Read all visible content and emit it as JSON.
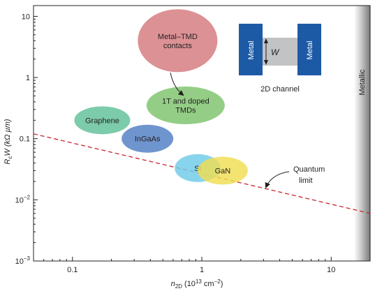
{
  "chart_data": {
    "type": "scatter",
    "xlabel": "n",
    "xlabel_sub": "2D",
    "xlabel_units": " (10",
    "xlabel_units_sup": "13",
    "xlabel_units_tail": " cm",
    "xlabel_units_sup2": "−2",
    "xlabel_units_close": ")",
    "ylabel": "R",
    "ylabel_sub": "c",
    "ylabel_rest": "W (kΩ µm)",
    "x_scale": "log",
    "y_scale": "log",
    "xlim": [
      0.05,
      20
    ],
    "ylim": [
      0.001,
      15
    ],
    "x_ticks": [
      {
        "value": 0.1,
        "label": "0.1"
      },
      {
        "value": 1,
        "label": "1"
      },
      {
        "value": 10,
        "label": "10"
      }
    ],
    "y_ticks": [
      {
        "value": 0.001,
        "base": "10",
        "exp": "−3"
      },
      {
        "value": 0.01,
        "base": "10",
        "exp": "−2"
      },
      {
        "value": 0.1,
        "label": "0.1"
      },
      {
        "value": 1,
        "label": "1"
      },
      {
        "value": 10,
        "label": "10"
      }
    ],
    "regions": [
      {
        "label": "Metal-TMD contacts",
        "lines": [
          "Metal–TMD",
          "contacts"
        ],
        "x_center": 0.65,
        "y_center": 4.0,
        "color": "#d4797d"
      },
      {
        "label": "1T and doped TMDs",
        "lines": [
          "1T and doped",
          "TMDs"
        ],
        "x_center": 0.75,
        "y_center": 0.35,
        "color": "#7dc36b"
      },
      {
        "label": "Graphene",
        "lines": [
          "Graphene"
        ],
        "x_center": 0.17,
        "y_center": 0.2,
        "color": "#5fbf98"
      },
      {
        "label": "InGaAs",
        "lines": [
          "InGaAs"
        ],
        "x_center": 0.38,
        "y_center": 0.1,
        "color": "#4f7ec4"
      },
      {
        "label": "Si",
        "lines": [
          "Si"
        ],
        "x_center": 0.93,
        "y_center": 0.033,
        "color": "#6ecbe8"
      },
      {
        "label": "GaN",
        "lines": [
          "GaN"
        ],
        "x_center": 1.45,
        "y_center": 0.03,
        "color": "#f0de52"
      }
    ],
    "quantum_limit": {
      "label_lines": [
        "Quantum",
        "limit"
      ],
      "points": [
        [
          0.05,
          0.12
        ],
        [
          20,
          0.006
        ]
      ],
      "color": "#c8252c"
    },
    "metallic_region": {
      "label": "Metallic",
      "x_start": 15
    },
    "inset": {
      "metal_left": "Metal",
      "metal_right": "Metal",
      "width_label": "W",
      "caption": "2D channel",
      "metal_color": "#1d5aa6",
      "channel_color": "#c2c3c5"
    }
  }
}
